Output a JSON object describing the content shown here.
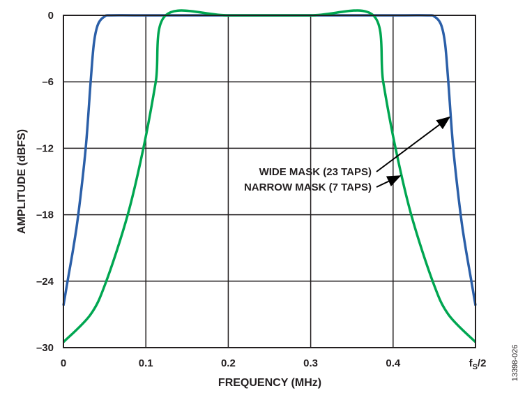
{
  "chart_data": {
    "type": "line",
    "title": "",
    "xlabel": "FREQUENCY (MHz)",
    "ylabel": "AMPLITUDE (dBFS)",
    "xlim": [
      0,
      0.5
    ],
    "ylim": [
      -30,
      0
    ],
    "grid": true,
    "x_ticks": [
      {
        "value": 0,
        "label": "0"
      },
      {
        "value": 0.1,
        "label": "0.1"
      },
      {
        "value": 0.2,
        "label": "0.2"
      },
      {
        "value": 0.3,
        "label": "0.3"
      },
      {
        "value": 0.4,
        "label": "0.4"
      },
      {
        "value": 0.5,
        "label": "f",
        "sub": "S",
        "suffix": "/2"
      }
    ],
    "y_ticks": [
      {
        "value": 0,
        "label": "0"
      },
      {
        "value": -6,
        "label": "–6"
      },
      {
        "value": -12,
        "label": "–12"
      },
      {
        "value": -18,
        "label": "–18"
      },
      {
        "value": -24,
        "label": "–24"
      },
      {
        "value": -30,
        "label": "–30"
      }
    ],
    "series": [
      {
        "name": "WIDE MASK (23 TAPS)",
        "color": "#2b5fa8",
        "x": [
          0,
          0.005,
          0.012,
          0.018,
          0.027,
          0.033,
          0.037,
          0.042,
          0.05,
          0.058,
          0.1,
          0.25,
          0.4,
          0.442,
          0.45,
          0.458,
          0.463,
          0.467,
          0.473,
          0.482,
          0.488,
          0.495,
          0.5
        ],
        "y": [
          -26.2,
          -24,
          -21,
          -18,
          -12,
          -6,
          -2.5,
          -0.8,
          -0.1,
          0,
          0,
          0,
          0,
          0,
          -0.1,
          -0.8,
          -2.5,
          -6,
          -12,
          -18,
          -21,
          -24,
          -26.2
        ]
      },
      {
        "name": "NARROW MASK (7 TAPS)",
        "color": "#00a651",
        "x": [
          0,
          0.033,
          0.052,
          0.078,
          0.097,
          0.112,
          0.124,
          0.2,
          0.3,
          0.376,
          0.388,
          0.403,
          0.422,
          0.448,
          0.467,
          0.5
        ],
        "y": [
          -29.5,
          -27,
          -24,
          -18,
          -12,
          -6,
          0,
          0,
          0,
          0,
          -6,
          -12,
          -18,
          -24,
          -27,
          -29.5
        ]
      }
    ],
    "annotations": [
      {
        "text": "WIDE MASK (23 TAPS)",
        "series": 0,
        "arrow_to": {
          "x": 0.47,
          "y": -9.2
        }
      },
      {
        "text": "NARROW MASK (7 TAPS)",
        "series": 1,
        "arrow_to": {
          "x": 0.41,
          "y": -14.5
        }
      }
    ],
    "figure_id": "13398-026"
  }
}
